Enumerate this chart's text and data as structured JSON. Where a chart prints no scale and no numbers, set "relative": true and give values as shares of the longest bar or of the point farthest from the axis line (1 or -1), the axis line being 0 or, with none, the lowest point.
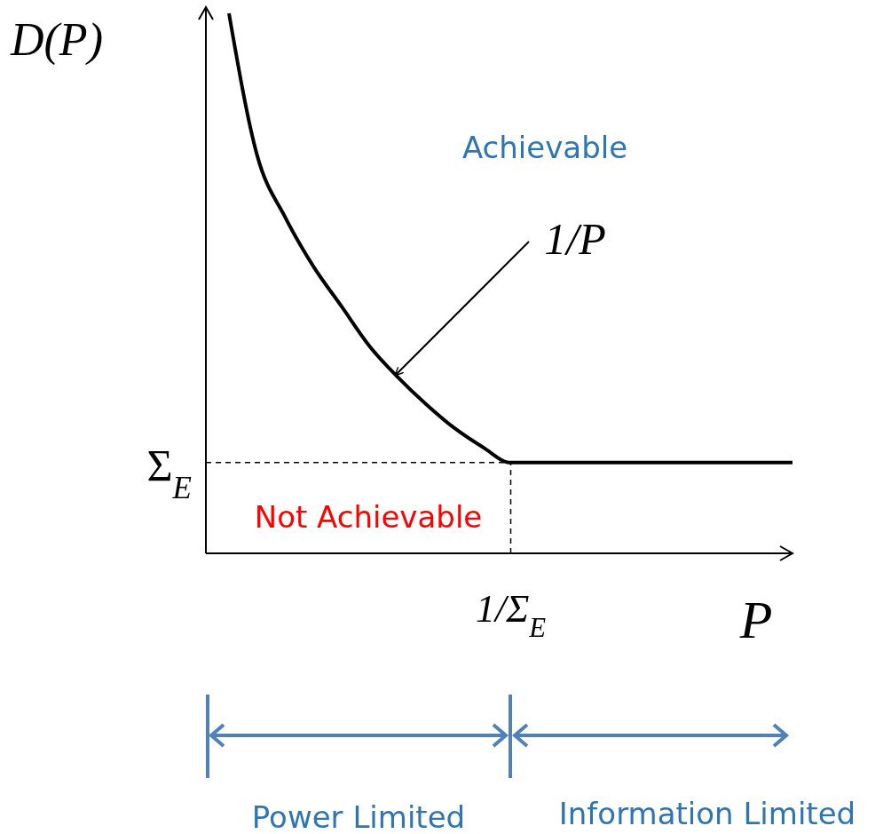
{
  "chart_data": {
    "type": "line",
    "relative": true,
    "ylabel": "D(P)",
    "xlabel": "P",
    "categories": [
      null,
      null,
      null,
      null,
      null,
      null,
      null,
      null,
      null,
      null,
      null,
      null,
      null,
      null,
      null,
      null,
      null,
      null,
      null,
      null,
      null
    ],
    "series": [
      {
        "color": "#000000",
        "values": [
          1.0,
          0.737,
          0.622,
          0.531,
          0.457,
          0.383,
          0.326,
          0.276,
          0.232,
          0.197,
          0.168,
          0.168,
          0.168,
          0.168,
          0.168,
          0.168,
          0.168,
          0.168,
          0.168,
          0.168,
          0.168
        ]
      }
    ],
    "ref_lines": [
      {
        "axis": "y",
        "value": 0.168,
        "label": "Σ$_{E}$",
        "line_style": "dashed"
      }
    ],
    "annotations": [
      "Achievable",
      "1/P",
      "Not Achievable",
      "Power Limited",
      "Information Limited",
      "1/Σ$_{E}$"
    ],
    "marker": "none",
    "line_style": "solid",
    "grid": false
  }
}
